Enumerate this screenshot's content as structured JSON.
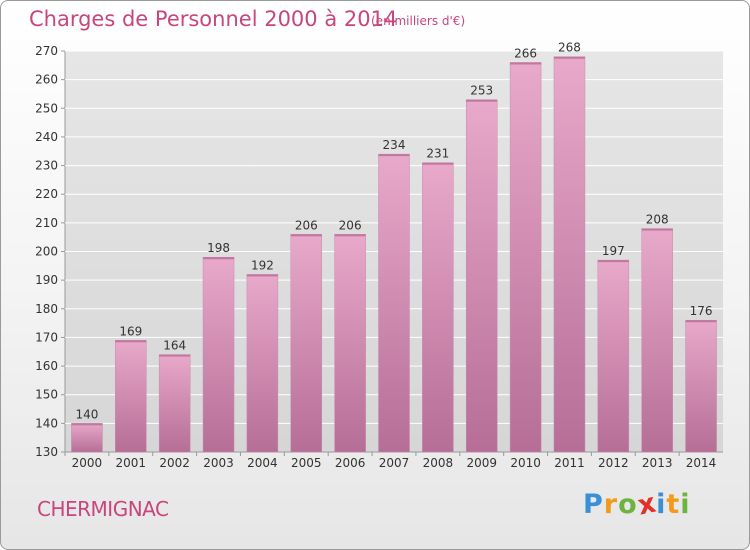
{
  "chart_data": {
    "type": "bar",
    "title": "Charges de Personnel 2000 à 2014",
    "subtitle": "(en milliers d'€)",
    "categories": [
      "2000",
      "2001",
      "2002",
      "2003",
      "2004",
      "2005",
      "2006",
      "2007",
      "2008",
      "2009",
      "2010",
      "2011",
      "2012",
      "2013",
      "2014"
    ],
    "values": [
      140,
      169,
      164,
      198,
      192,
      206,
      206,
      234,
      231,
      253,
      266,
      268,
      197,
      208,
      176
    ],
    "ylim": [
      130,
      270
    ],
    "yticks": [
      130,
      140,
      150,
      160,
      170,
      180,
      190,
      200,
      210,
      220,
      230,
      240,
      250,
      260,
      270
    ],
    "grid": true,
    "bar_color": "#d98ab4",
    "xlabel": "",
    "ylabel": ""
  },
  "footer": {
    "commune": "CHERMIGNAC",
    "brand": [
      "P",
      "r",
      "o",
      "x",
      "i",
      "t",
      "i"
    ],
    "brand_colors": [
      "#3a8fd6",
      "#f29a1c",
      "#6cb33f",
      "#e0312a",
      "#3a8fd6",
      "#f29a1c",
      "#6cb33f"
    ]
  },
  "colors": {
    "accent": "#c8457e"
  }
}
